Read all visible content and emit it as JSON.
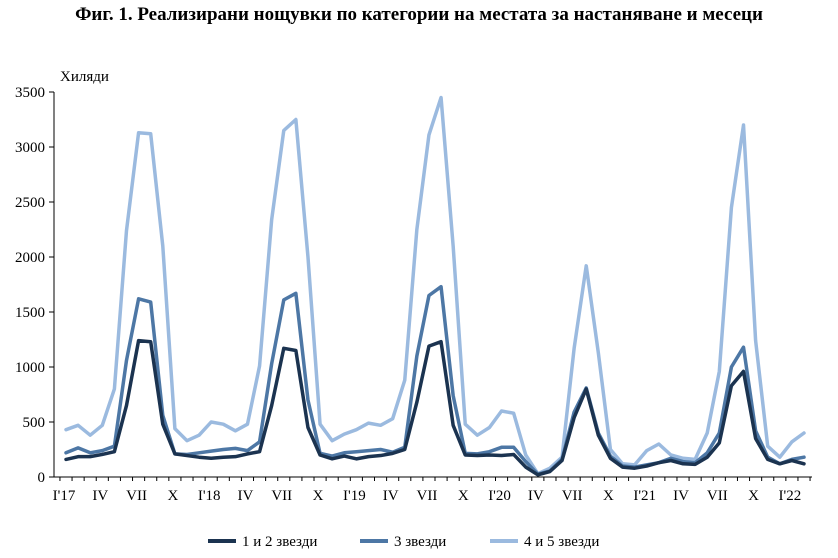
{
  "title": "Фиг. 1. Реализирани нощувки по категории на местата за настаняване и месеци",
  "chart_data": {
    "type": "line",
    "title": "Фиг. 1. Реализирани нощувки по категории на местата за настаняване и месеци",
    "ylabel": "Хиляди",
    "xlabel": "",
    "ylim": [
      0,
      3500
    ],
    "yticks": [
      0,
      500,
      1000,
      1500,
      2000,
      2500,
      3000,
      3500
    ],
    "grid": false,
    "legend_position": "bottom",
    "x_tick_labels": [
      {
        "index": 0,
        "label": "I'17"
      },
      {
        "index": 3,
        "label": "IV"
      },
      {
        "index": 6,
        "label": "VII"
      },
      {
        "index": 9,
        "label": "X"
      },
      {
        "index": 12,
        "label": "I'18"
      },
      {
        "index": 15,
        "label": "IV"
      },
      {
        "index": 18,
        "label": "VII"
      },
      {
        "index": 21,
        "label": "X"
      },
      {
        "index": 24,
        "label": "I'19"
      },
      {
        "index": 27,
        "label": "IV"
      },
      {
        "index": 30,
        "label": "VII"
      },
      {
        "index": 33,
        "label": "X"
      },
      {
        "index": 36,
        "label": "I'20"
      },
      {
        "index": 39,
        "label": "IV"
      },
      {
        "index": 42,
        "label": "VII"
      },
      {
        "index": 45,
        "label": "X"
      },
      {
        "index": 48,
        "label": "I'21"
      },
      {
        "index": 51,
        "label": "IV"
      },
      {
        "index": 54,
        "label": "VII"
      },
      {
        "index": 57,
        "label": "X"
      },
      {
        "index": 60,
        "label": "I'22"
      }
    ],
    "series": [
      {
        "name": "1 и 2 звезди",
        "color": "#1b3350",
        "values": [
          160,
          185,
          185,
          205,
          230,
          650,
          1240,
          1230,
          480,
          210,
          195,
          180,
          170,
          180,
          185,
          210,
          230,
          650,
          1170,
          1150,
          450,
          200,
          165,
          190,
          165,
          185,
          195,
          215,
          250,
          680,
          1190,
          1230,
          470,
          200,
          195,
          200,
          195,
          205,
          90,
          20,
          50,
          150,
          540,
          800,
          380,
          170,
          90,
          80,
          100,
          130,
          150,
          120,
          115,
          180,
          310,
          830,
          960,
          350,
          160,
          120,
          150,
          120
        ]
      },
      {
        "name": "3 звезди",
        "color": "#4d77a5",
        "values": [
          220,
          265,
          220,
          240,
          280,
          1060,
          1620,
          1590,
          560,
          210,
          205,
          220,
          235,
          250,
          260,
          240,
          320,
          1030,
          1610,
          1670,
          700,
          215,
          190,
          220,
          230,
          240,
          250,
          225,
          270,
          1100,
          1650,
          1730,
          740,
          215,
          210,
          230,
          270,
          270,
          140,
          25,
          55,
          160,
          590,
          810,
          400,
          190,
          100,
          90,
          110,
          130,
          170,
          140,
          130,
          220,
          400,
          1000,
          1180,
          420,
          180,
          120,
          160,
          180
        ]
      },
      {
        "name": "4 и 5 звезди",
        "color": "#9bbadf",
        "values": [
          430,
          470,
          380,
          470,
          800,
          2240,
          3130,
          3120,
          2100,
          440,
          330,
          380,
          500,
          480,
          420,
          480,
          1010,
          2340,
          3150,
          3250,
          2000,
          480,
          330,
          390,
          430,
          490,
          470,
          530,
          880,
          2250,
          3110,
          3450,
          2100,
          480,
          380,
          450,
          600,
          580,
          200,
          30,
          80,
          180,
          1170,
          1920,
          1130,
          250,
          120,
          110,
          240,
          300,
          200,
          170,
          160,
          400,
          960,
          2450,
          3200,
          1240,
          280,
          180,
          320,
          400
        ]
      }
    ]
  }
}
